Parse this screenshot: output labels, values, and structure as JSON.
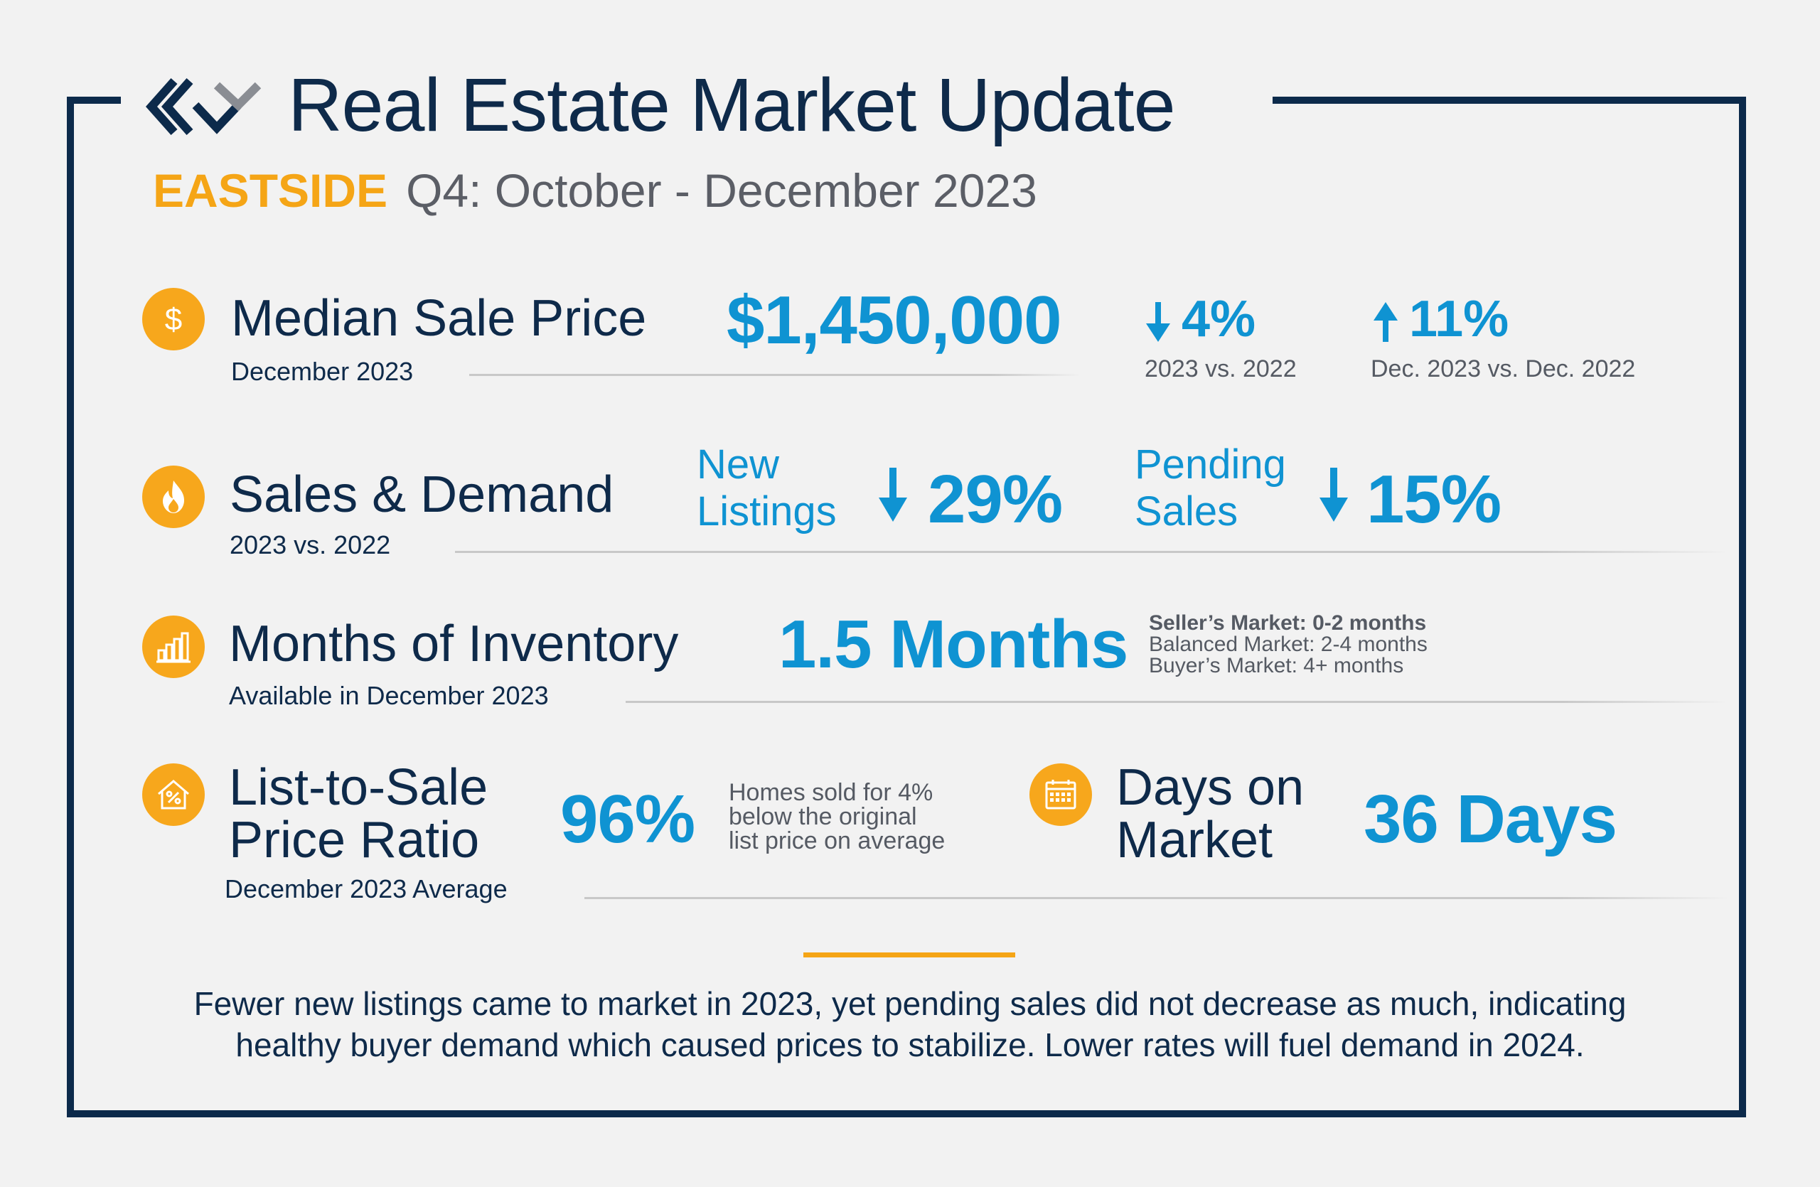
{
  "header": {
    "title": "Real Estate Market Update",
    "region": "EASTSIDE",
    "period": "Q4: October - December 2023"
  },
  "median_sale_price": {
    "label": "Median Sale Price",
    "sub": "December 2023",
    "value": "$1,450,000",
    "change_year": "4%",
    "change_year_direction": "down",
    "change_year_caption": "2023 vs. 2022",
    "change_month": "11%",
    "change_month_direction": "up",
    "change_month_caption": "Dec. 2023 vs. Dec. 2022",
    "icon": "dollar-icon"
  },
  "sales_demand": {
    "label": "Sales & Demand",
    "sub": "2023 vs. 2022",
    "new_listings_label_1": "New",
    "new_listings_label_2": "Listings",
    "new_listings_value": "29%",
    "pending_label_1": "Pending",
    "pending_label_2": "Sales",
    "pending_value": "15%",
    "icon": "flame-icon"
  },
  "inventory": {
    "label": "Months of Inventory",
    "sub": "Available in December 2023",
    "value": "1.5 Months",
    "legend": [
      "Seller’s Market: 0-2 months",
      "Balanced Market: 2-4 months",
      "Buyer’s Market: 4+ months"
    ],
    "icon": "bar-chart-icon"
  },
  "list_to_sale": {
    "label_1": "List-to-Sale",
    "label_2": "Price Ratio",
    "sub": "December 2023 Average",
    "value": "96%",
    "note_1": "Homes sold for 4%",
    "note_2": "below the original",
    "note_3": "list price on average",
    "icon": "house-percent-icon"
  },
  "days_on_market": {
    "label_1": "Days on",
    "label_2": "Market",
    "value": "36 Days",
    "icon": "calendar-icon"
  },
  "summary": {
    "line_1": "Fewer new listings came to market in 2023, yet pending sales did not decrease as much, indicating",
    "line_2": "healthy buyer demand which caused prices to stabilize. Lower rates will fuel demand in 2024."
  },
  "colors": {
    "navy": "#0c2a4b",
    "accent_orange": "#f5a516",
    "value_blue": "#0f93d2"
  }
}
